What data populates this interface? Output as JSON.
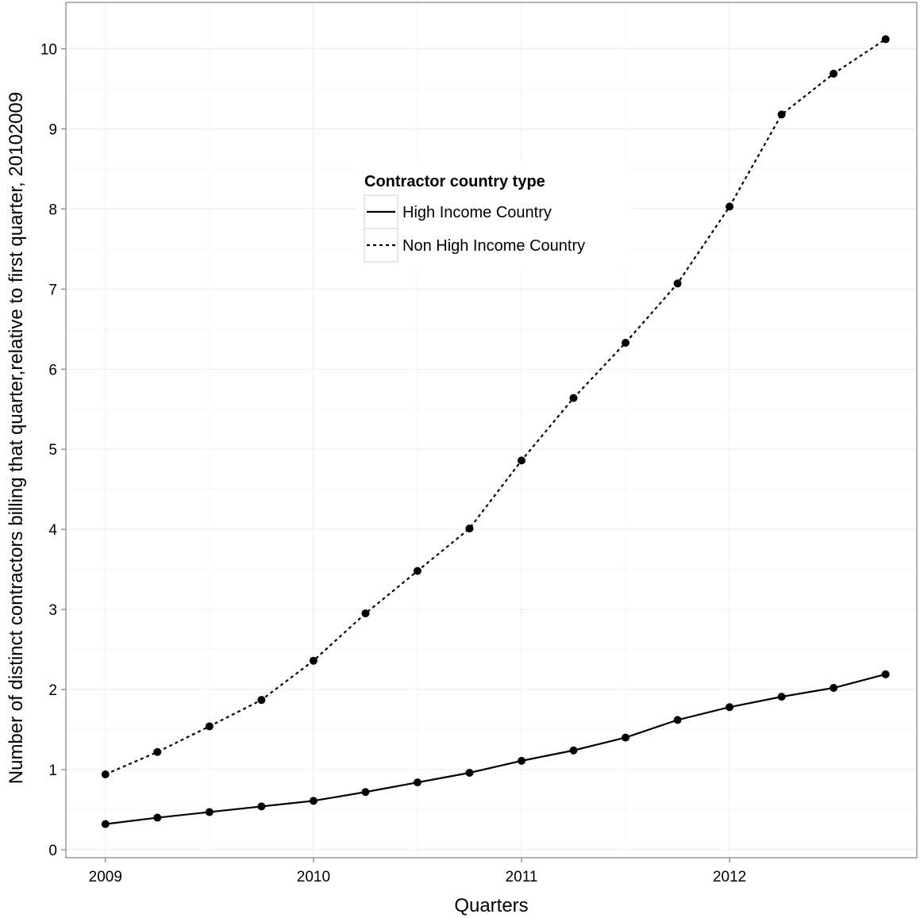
{
  "chart_data": {
    "type": "line",
    "xlabel": "Quarters",
    "ylabel": "Number of distinct contractors billing that quarter,relative to first quarter, 20102009",
    "x": [
      2009.0,
      2009.25,
      2009.5,
      2009.75,
      2010.0,
      2010.25,
      2010.5,
      2010.75,
      2011.0,
      2011.25,
      2011.5,
      2011.75,
      2012.0,
      2012.25,
      2012.5,
      2012.75
    ],
    "x_ticks": [
      2009,
      2010,
      2011,
      2012
    ],
    "x_tick_labels": [
      "2009",
      "2010",
      "2011",
      "2012"
    ],
    "xlim": [
      2008.81,
      2012.9
    ],
    "y_ticks": [
      0,
      1,
      2,
      3,
      4,
      5,
      6,
      7,
      8,
      9,
      10
    ],
    "y_tick_labels": [
      "0",
      "1",
      "2",
      "3",
      "4",
      "5",
      "6",
      "7",
      "8",
      "9",
      "10"
    ],
    "ylim": [
      -0.1,
      10.58
    ],
    "grid": true,
    "legend": {
      "title": "Contractor country type",
      "placement": "top-center"
    },
    "series": [
      {
        "name": "High Income Country",
        "line_style": "solid",
        "values": [
          0.32,
          0.4,
          0.47,
          0.54,
          0.61,
          0.72,
          0.84,
          0.96,
          1.11,
          1.24,
          1.4,
          1.62,
          1.78,
          1.91,
          2.02,
          2.19
        ]
      },
      {
        "name": "Non High Income Country",
        "line_style": "dashed",
        "values": [
          0.94,
          1.22,
          1.54,
          1.87,
          2.36,
          2.95,
          3.48,
          4.01,
          4.86,
          5.64,
          6.33,
          7.07,
          8.03,
          9.18,
          9.69,
          10.12
        ]
      }
    ],
    "colors": {
      "line": "#000000",
      "grid": "#ebebeb",
      "frame": "#7f7f7f",
      "background": "#ffffff"
    }
  }
}
